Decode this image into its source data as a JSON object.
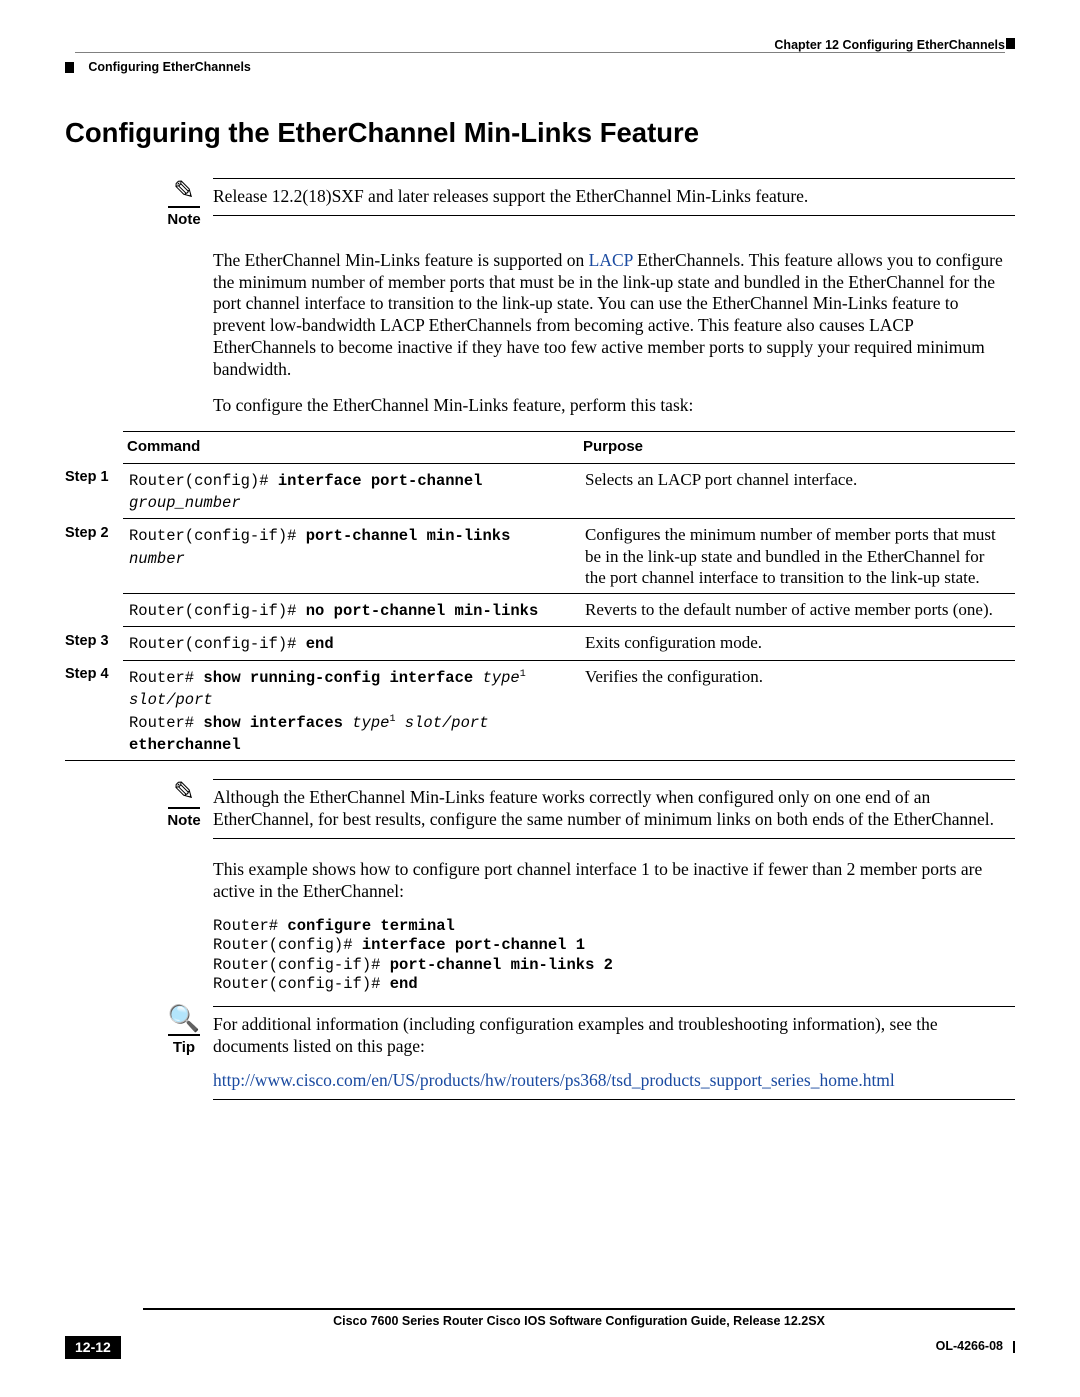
{
  "header": {
    "chapter_label": "Chapter 12    Configuring EtherChannels",
    "section_crumb": "Configuring EtherChannels"
  },
  "heading": "Configuring the EtherChannel Min-Links Feature",
  "note1": {
    "icon_word": "Note",
    "text": "Release 12.2(18)SXF and later releases support the EtherChannel Min-Links feature."
  },
  "para1_pre": "The EtherChannel Min-Links feature is supported on ",
  "para1_link": "LACP",
  "para1_post": " EtherChannels. This feature allows you to configure the minimum number of member ports that must be in the link-up state and bundled in the EtherChannel for the port channel interface to transition to the link-up state. You can use the EtherChannel Min-Links feature to prevent low-bandwidth LACP EtherChannels from becoming active. This feature also causes LACP EtherChannels to become inactive if they have too few active member ports to supply your required minimum bandwidth.",
  "para2": "To configure the EtherChannel Min-Links feature, perform this task:",
  "table": {
    "head_command": "Command",
    "head_purpose": "Purpose",
    "rows": [
      {
        "step": "Step 1",
        "cmd_prefix": "Router(config)# ",
        "cmd_bold": "interface port-channel ",
        "cmd_ital": "group_number",
        "cmd_suffix": "",
        "cmd_line2_prefix": "",
        "cmd_line2_bold": "",
        "cmd_line2_ital": "",
        "cmd_line2_suffix": "",
        "cmd_line3": "",
        "purpose": "Selects an LACP port channel interface."
      },
      {
        "step": "Step 2",
        "cmd_prefix": "Router(config-if)# ",
        "cmd_bold": "port-channel min-links ",
        "cmd_ital": "number",
        "cmd_suffix": "",
        "cmd_line2_prefix": "",
        "cmd_line2_bold": "",
        "cmd_line2_ital": "",
        "cmd_line2_suffix": "",
        "cmd_line3": "",
        "purpose": "Configures the minimum number of member ports that must be in the link-up state and bundled in the EtherChannel for the port channel interface to transition to the link-up state."
      },
      {
        "step": "",
        "cmd_prefix": "Router(config-if)# ",
        "cmd_bold": "no port-channel min-links",
        "cmd_ital": "",
        "cmd_suffix": "",
        "cmd_line2_prefix": "",
        "cmd_line2_bold": "",
        "cmd_line2_ital": "",
        "cmd_line2_suffix": "",
        "cmd_line3": "",
        "purpose": "Reverts to the default number of active member ports (one)."
      },
      {
        "step": "Step 3",
        "cmd_prefix": "Router(config-if)# ",
        "cmd_bold": "end",
        "cmd_ital": "",
        "cmd_suffix": "",
        "cmd_line2_prefix": "",
        "cmd_line2_bold": "",
        "cmd_line2_ital": "",
        "cmd_line2_suffix": "",
        "cmd_line3": "",
        "purpose": "Exits configuration mode."
      },
      {
        "step": "Step 4",
        "cmd_prefix": "Router# ",
        "cmd_bold": "show running-config interface ",
        "cmd_ital": "type",
        "cmd_suffix": "¹",
        "cmd_line2_prefix": "",
        "cmd_line2_bold": "",
        "cmd_line2_ital": "slot/port",
        "cmd_line2_suffix": "",
        "cmd_line3": "Router# <b>show interfaces </b><i>type</i><span class=\"sup\">1</span> <i>slot/port</i> <b>etherchannel</b>",
        "purpose": "Verifies the configuration."
      }
    ]
  },
  "note2": {
    "icon_word": "Note",
    "text": "Although the EtherChannel Min-Links feature works correctly when configured only on one end of an EtherChannel, for best results, configure the same number of minimum links on both ends of the EtherChannel."
  },
  "para3": "This example shows how to configure port channel interface 1 to be inactive if fewer than 2 member ports are active in the EtherChannel:",
  "code": {
    "l1_pre": "Router# ",
    "l1_bold": "configure terminal",
    "l2_pre": "Router(config)# ",
    "l2_bold": "interface port-channel 1",
    "l3_pre": "Router(config-if)# ",
    "l3_bold": "port-channel min-links 2",
    "l4_pre": "Router(config-if)# ",
    "l4_bold": "end"
  },
  "tip": {
    "icon_word": "Tip",
    "text1": "For additional information (including configuration examples and troubleshooting information), see the documents listed on this page:",
    "link": "http://www.cisco.com/en/US/products/hw/routers/ps368/tsd_products_support_series_home.html"
  },
  "footer": {
    "guide": "Cisco 7600 Series Router Cisco IOS Software Configuration Guide, Release 12.2SX",
    "page": "12-12",
    "docid": "OL-4266-08"
  }
}
